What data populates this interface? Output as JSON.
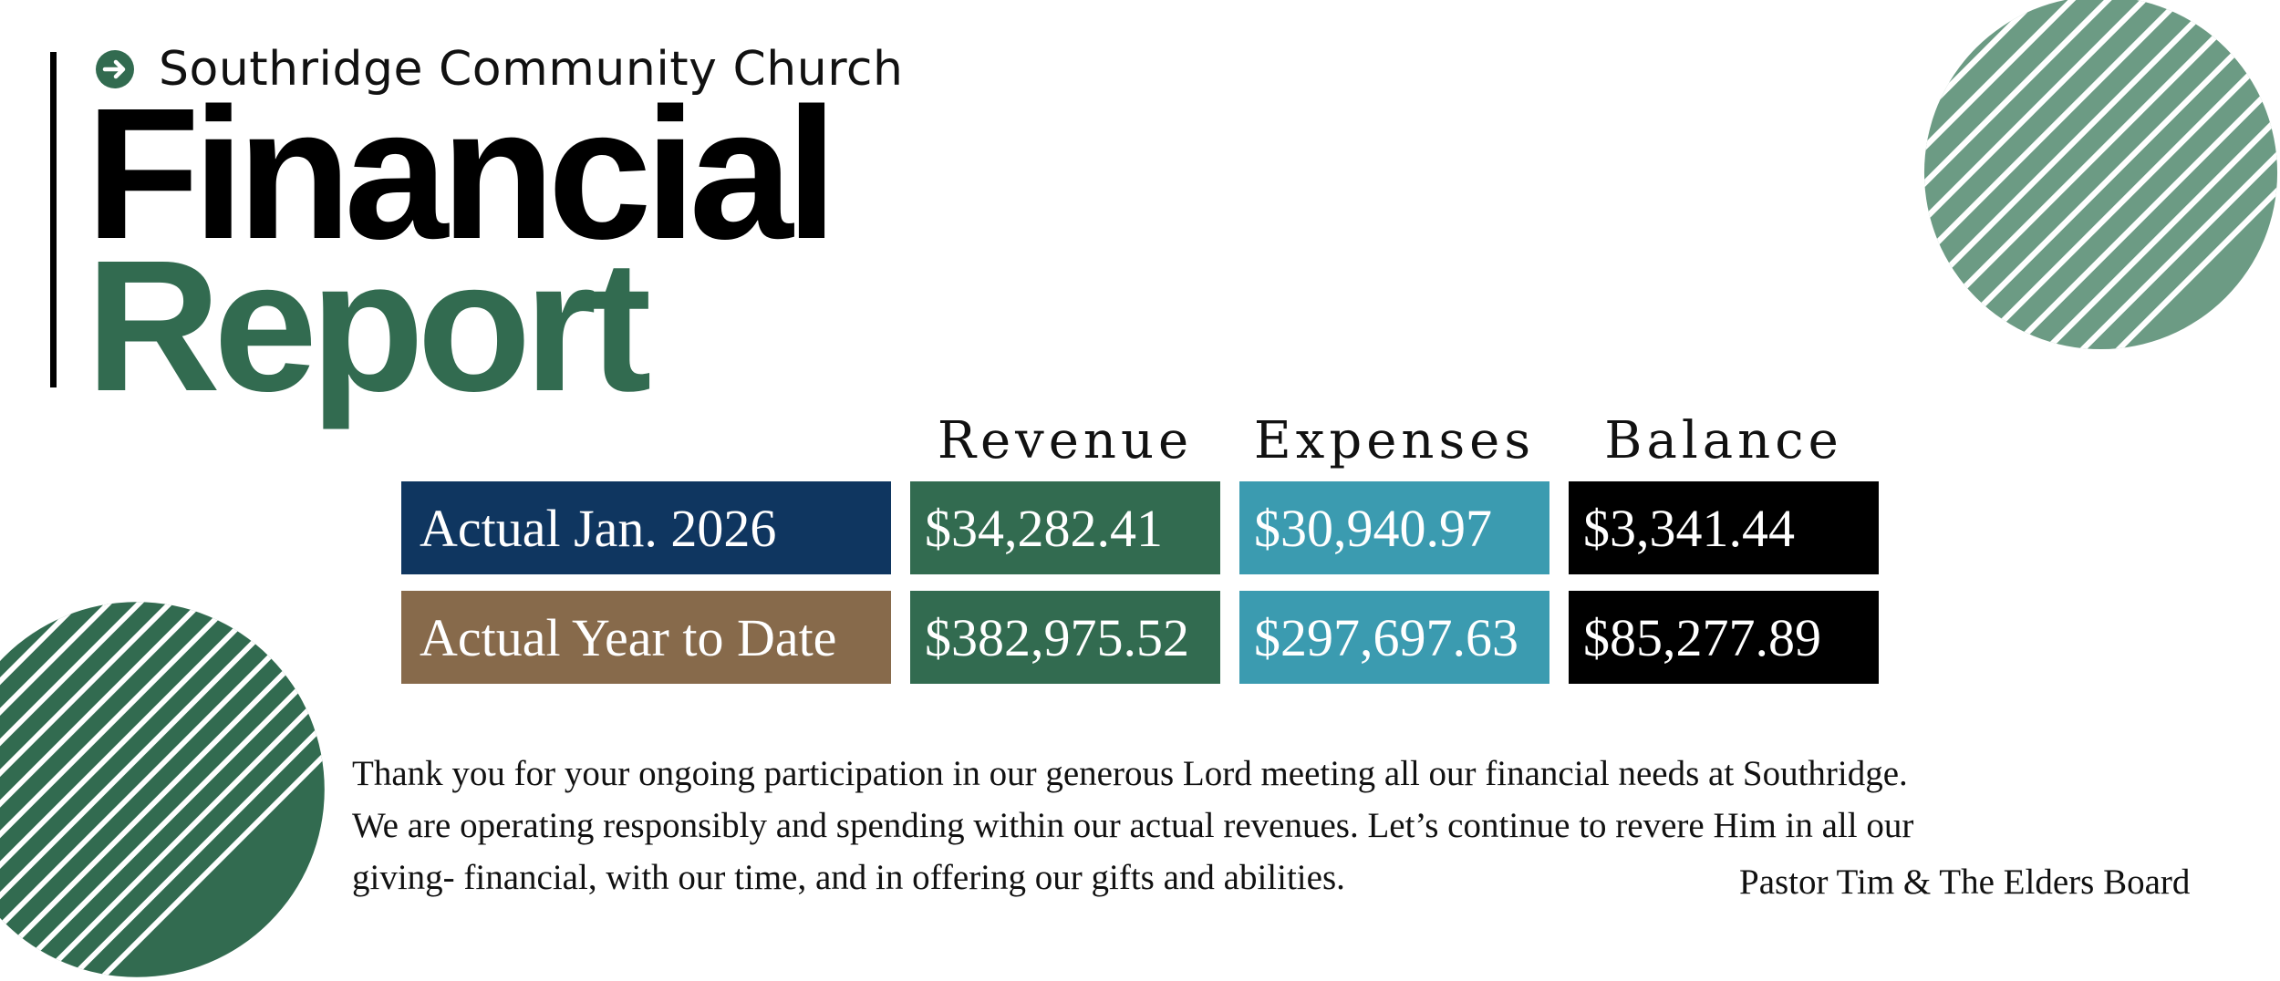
{
  "header": {
    "church_name": "Southridge Community Church",
    "title_line1": "Financial",
    "title_line2": "Report",
    "icon": "arrow-right-circle-icon"
  },
  "table": {
    "columns": [
      "Revenue",
      "Expenses",
      "Balance"
    ],
    "rows": [
      {
        "label": "Actual Jan. 2026",
        "revenue": "$34,282.41",
        "expenses": "$30,940.97",
        "balance": "$3,341.44"
      },
      {
        "label": "Actual Year to Date",
        "revenue": "$382,975.52",
        "expenses": "$297,697.63",
        "balance": "$85,277.89"
      }
    ]
  },
  "message": {
    "lines": [
      "Thank you for your ongoing participation in our generous Lord meeting all our financial needs at Southridge.",
      "We are operating responsibly and spending within our actual revenues. Let’s continue to revere Him in all our",
      "giving- financial, with our time, and in offering our gifts and abilities."
    ],
    "signature": "Pastor Tim & The Elders Board"
  },
  "colors": {
    "green_dark": "#326b50",
    "green_light": "#6c9b84",
    "navy": "#0f3660",
    "brown": "#876a4b",
    "teal": "#3b9bb0",
    "black": "#000000"
  }
}
